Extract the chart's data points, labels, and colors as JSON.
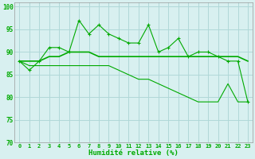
{
  "x": [
    0,
    1,
    2,
    3,
    4,
    5,
    6,
    7,
    8,
    9,
    10,
    11,
    12,
    13,
    14,
    15,
    16,
    17,
    18,
    19,
    20,
    21,
    22,
    23
  ],
  "line1": [
    88,
    86,
    88,
    91,
    91,
    90,
    97,
    94,
    96,
    94,
    93,
    92,
    92,
    96,
    90,
    91,
    93,
    89,
    90,
    90,
    89,
    88,
    88,
    79
  ],
  "line2": [
    88,
    88,
    88,
    89,
    89,
    90,
    90,
    90,
    89,
    89,
    89,
    89,
    89,
    89,
    89,
    89,
    89,
    89,
    89,
    89,
    89,
    89,
    89,
    88
  ],
  "line3": [
    88,
    87,
    87,
    87,
    87,
    87,
    87,
    87,
    87,
    87,
    86,
    85,
    84,
    84,
    83,
    82,
    81,
    80,
    79,
    79,
    79,
    83,
    79,
    79
  ],
  "bg_color": "#d8f0f0",
  "grid_color": "#b0d8d8",
  "line_color": "#00aa00",
  "xlabel": "Humidité relative (%)",
  "ylim": [
    70,
    101
  ],
  "xlim": [
    -0.5,
    23.5
  ],
  "yticks": [
    70,
    75,
    80,
    85,
    90,
    95,
    100
  ],
  "xtick_labels": [
    "0",
    "1",
    "2",
    "3",
    "4",
    "5",
    "6",
    "7",
    "8",
    "9",
    "10",
    "11",
    "12",
    "13",
    "14",
    "15",
    "16",
    "17",
    "18",
    "19",
    "20",
    "21",
    "22",
    "23"
  ]
}
